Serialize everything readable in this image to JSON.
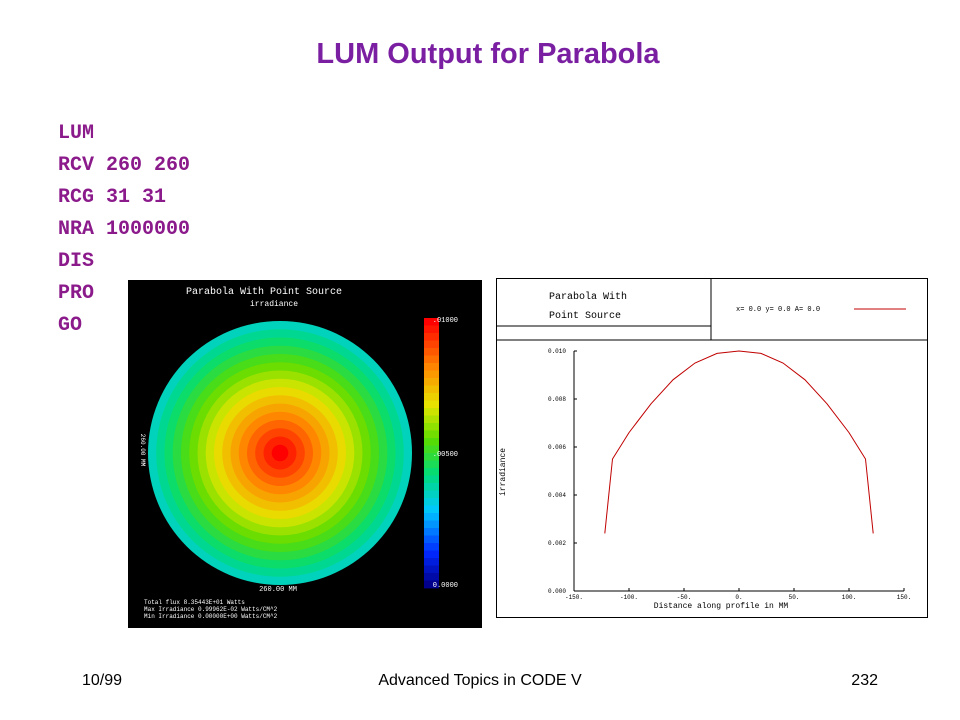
{
  "slide": {
    "title": "LUM Output for Parabola",
    "commands": [
      "LUM",
      "RCV 260 260",
      "RCG 31 31",
      "NRA 1000000",
      "DIS",
      "PRO",
      "GO"
    ],
    "footer": {
      "left": "10/99",
      "center": "Advanced Topics in CODE V",
      "right": "232"
    }
  },
  "chart_data": [
    {
      "type": "heatmap",
      "title": "Parabola With Point Source",
      "subtitle": "irradiance",
      "xlabel": "260.00 MM",
      "ylabel": "260.00 MM",
      "colorbar": {
        "ticks": [
          ".01000",
          ".00500",
          "0.0000"
        ],
        "range": [
          0,
          0.01
        ]
      },
      "pattern": "concentric rings, peak at center",
      "stats": [
        "Total flux  8.35443E+01 Watts",
        "Max Irradiance  0.99962E-02 Watts/CM^2",
        "Min Irradiance  0.00000E+00 Watts/CM^2"
      ]
    },
    {
      "type": "line",
      "title_lines": [
        "Parabola With",
        "Point Source"
      ],
      "legend": "x=  0.0 y=  0.0 A=  0.0",
      "xlabel": "Distance along profile in MM",
      "ylabel": "irradiance",
      "xlim": [
        -150,
        150
      ],
      "ylim": [
        0,
        0.01
      ],
      "x_ticks": [
        "-150.",
        "-100.",
        "-50.",
        "0.",
        "50.",
        "100.",
        "150."
      ],
      "y_ticks": [
        "0.000",
        "0.002",
        "0.004",
        "0.006",
        "0.008",
        "0.010"
      ],
      "x": [
        -122,
        -115,
        -100,
        -80,
        -60,
        -40,
        -20,
        0,
        20,
        40,
        60,
        80,
        100,
        115,
        122
      ],
      "y": [
        0.0024,
        0.0055,
        0.0066,
        0.0078,
        0.0088,
        0.0095,
        0.0099,
        0.01,
        0.0099,
        0.0095,
        0.0088,
        0.0078,
        0.0066,
        0.0055,
        0.0024
      ]
    }
  ]
}
